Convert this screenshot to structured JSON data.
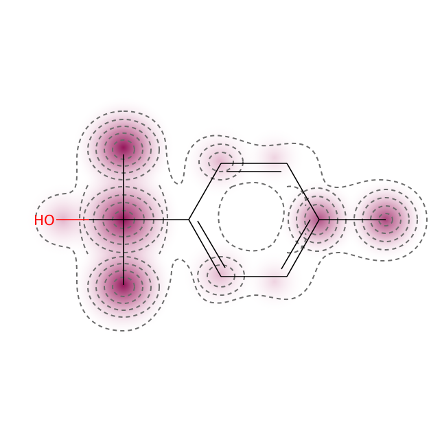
{
  "molecule": {
    "atom_labels": [
      {
        "id": "O1",
        "text": "HO",
        "color": "#ff0000"
      }
    ],
    "colors": {
      "bond": "#000000",
      "heteroatom": "#ff0000",
      "contour": "#6b6b6b",
      "heat": "#8e0a52"
    }
  }
}
